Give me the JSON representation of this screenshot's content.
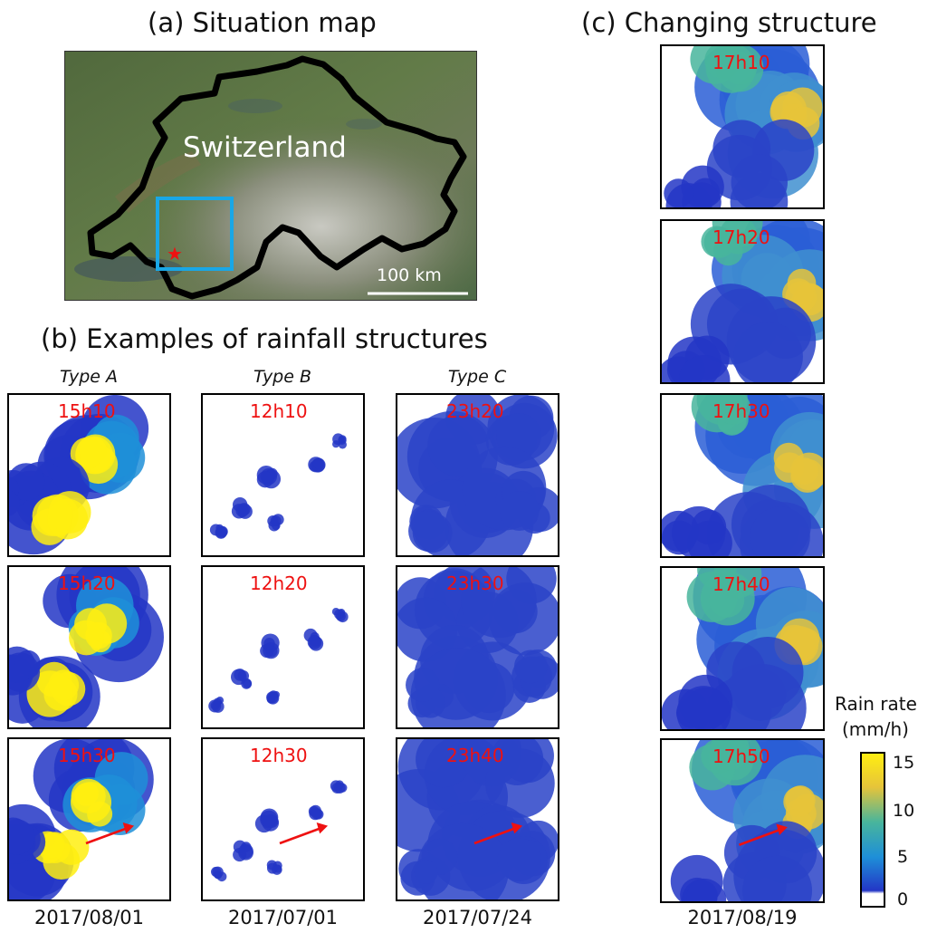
{
  "panel_a": {
    "title": "(a) Situation map",
    "country_label": "Switzerland",
    "scale_label": "100 km"
  },
  "panel_b": {
    "title": "(b) Examples of rainfall structures",
    "columns": [
      {
        "type": "Type A",
        "date": "2017/08/01",
        "times": [
          "15h10",
          "15h20",
          "15h30"
        ]
      },
      {
        "type": "Type B",
        "date": "2017/07/01",
        "times": [
          "12h10",
          "12h20",
          "12h30"
        ]
      },
      {
        "type": "Type C",
        "date": "2017/07/24",
        "times": [
          "23h20",
          "23h30",
          "23h40"
        ]
      }
    ]
  },
  "panel_c": {
    "title": "(c) Changing structure",
    "date": "2017/08/19",
    "times": [
      "17h10",
      "17h20",
      "17h30",
      "17h40",
      "17h50"
    ]
  },
  "colorbar": {
    "title_line1": "Rain rate",
    "title_line2": "(mm/h)",
    "ticks": [
      "15",
      "10",
      "5",
      "0"
    ],
    "colors": [
      "#ffee11",
      "#e6c43a",
      "#48b59c",
      "#1e8fd8",
      "#2336c6",
      "#ffffff"
    ]
  },
  "colors": {
    "time_label": "#ee1111",
    "study_box": "#19a7e6",
    "border": "#000000",
    "arrow": "#ee1111"
  }
}
